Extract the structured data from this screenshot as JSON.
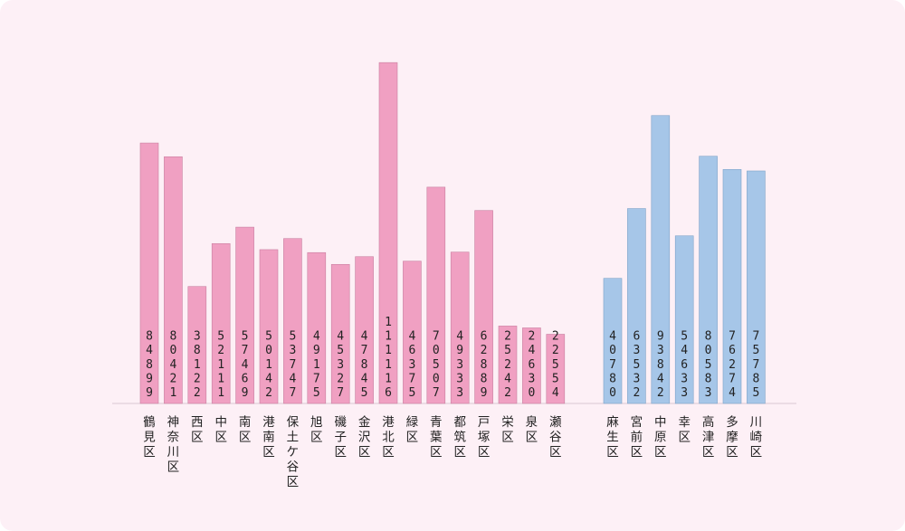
{
  "chart_data": {
    "type": "bar",
    "ylim": [
      0,
      115000
    ],
    "grid": false,
    "colors": {
      "yokohama": "#f0a0c2",
      "kawasaki": "#a6c6e8"
    },
    "groups": [
      {
        "color": "yokohama",
        "categories": [
          "鶴見区",
          "神奈川区",
          "西区",
          "中区",
          "南区",
          "港南区",
          "保土ケ谷区",
          "旭区",
          "磯子区",
          "金沢区",
          "港北区",
          "緑区",
          "青葉区",
          "都筑区",
          "戸塚区",
          "栄区",
          "泉区",
          "瀬谷区"
        ],
        "values": [
          84899,
          80421,
          38122,
          52111,
          57469,
          50142,
          53747,
          49175,
          45327,
          47845,
          111116,
          46375,
          70507,
          49333,
          62889,
          25242,
          24630,
          22554
        ]
      },
      {
        "color": "kawasaki",
        "categories": [
          "麻生区",
          "宮前区",
          "中原区",
          "幸区",
          "高津区",
          "多摩区",
          "川崎区"
        ],
        "values": [
          40780,
          63532,
          93842,
          54633,
          80583,
          76274,
          75785
        ]
      }
    ]
  }
}
